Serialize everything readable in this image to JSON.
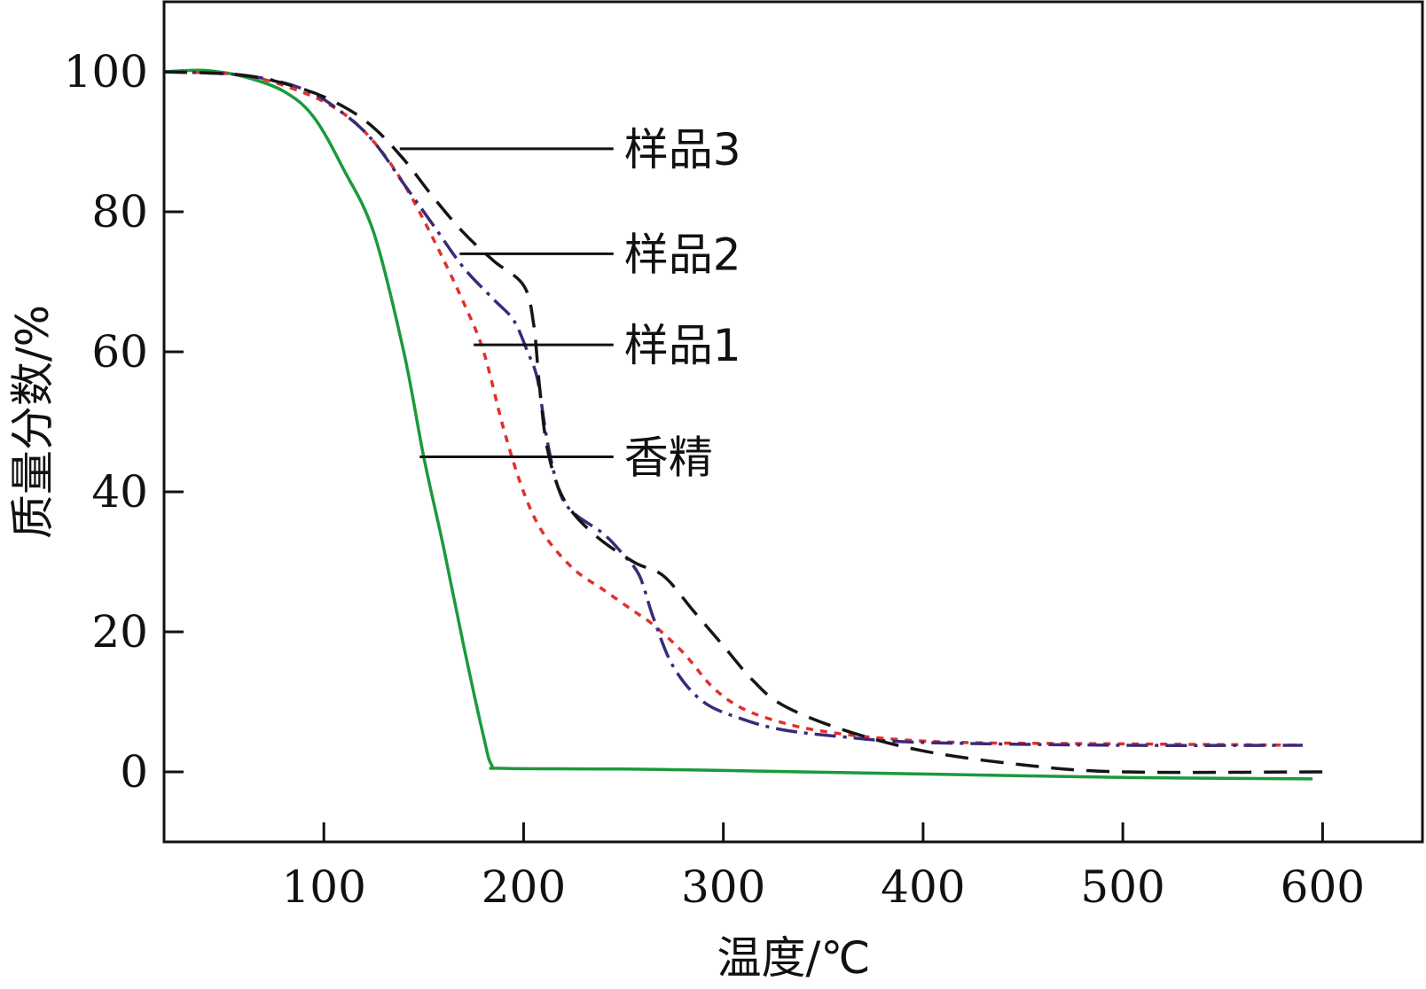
{
  "chart_data": {
    "type": "line",
    "title": "",
    "xlabel": "温度/℃",
    "ylabel": "质量分数/%",
    "xlim": [
      20,
      650
    ],
    "ylim": [
      -10,
      110
    ],
    "xticks": [
      100,
      200,
      300,
      400,
      500,
      600
    ],
    "yticks": [
      0,
      20,
      40,
      60,
      80,
      100
    ],
    "grid": false,
    "series": [
      {
        "name": "香精",
        "color": "#1a9a3c",
        "dash": "solid",
        "points": [
          [
            20,
            100
          ],
          [
            40,
            100.2
          ],
          [
            60,
            99.3
          ],
          [
            80,
            97.2
          ],
          [
            95,
            93.5
          ],
          [
            110,
            86
          ],
          [
            125,
            77
          ],
          [
            140,
            60
          ],
          [
            150,
            45
          ],
          [
            160,
            32
          ],
          [
            170,
            18
          ],
          [
            180,
            5
          ],
          [
            184,
            1
          ],
          [
            190,
            0.5
          ],
          [
            250,
            0.4
          ],
          [
            300,
            0.2
          ],
          [
            400,
            -0.3
          ],
          [
            500,
            -0.8
          ],
          [
            595,
            -1
          ]
        ]
      },
      {
        "name": "样品1",
        "color": "#e0312b",
        "dash": "8,8",
        "points": [
          [
            20,
            100
          ],
          [
            60,
            99.5
          ],
          [
            90,
            97
          ],
          [
            110,
            94
          ],
          [
            125,
            90
          ],
          [
            140,
            84
          ],
          [
            155,
            76
          ],
          [
            170,
            67
          ],
          [
            180,
            60
          ],
          [
            190,
            49
          ],
          [
            200,
            40
          ],
          [
            210,
            34
          ],
          [
            225,
            29
          ],
          [
            240,
            26
          ],
          [
            255,
            23
          ],
          [
            265,
            21
          ],
          [
            280,
            17
          ],
          [
            295,
            12
          ],
          [
            310,
            9
          ],
          [
            330,
            7
          ],
          [
            350,
            5.8
          ],
          [
            380,
            4.8
          ],
          [
            420,
            4.2
          ],
          [
            500,
            4
          ],
          [
            590,
            3.8
          ]
        ]
      },
      {
        "name": "样品2",
        "color": "#3b2a7a",
        "dash": "24,8,4,8",
        "points": [
          [
            20,
            100
          ],
          [
            60,
            99.5
          ],
          [
            90,
            97.5
          ],
          [
            110,
            94
          ],
          [
            125,
            90
          ],
          [
            140,
            84
          ],
          [
            155,
            78
          ],
          [
            170,
            72
          ],
          [
            185,
            67.5
          ],
          [
            195,
            64.5
          ],
          [
            202,
            60
          ],
          [
            207,
            56
          ],
          [
            212,
            47
          ],
          [
            218,
            40
          ],
          [
            225,
            37
          ],
          [
            240,
            34
          ],
          [
            250,
            31
          ],
          [
            258,
            28
          ],
          [
            265,
            22
          ],
          [
            275,
            15
          ],
          [
            290,
            10
          ],
          [
            310,
            7.5
          ],
          [
            330,
            6
          ],
          [
            360,
            5
          ],
          [
            400,
            4.2
          ],
          [
            500,
            3.8
          ],
          [
            590,
            3.8
          ]
        ]
      },
      {
        "name": "样品3",
        "color": "#151515",
        "dash": "26,14",
        "points": [
          [
            20,
            100
          ],
          [
            60,
            99.5
          ],
          [
            90,
            97.5
          ],
          [
            110,
            95
          ],
          [
            125,
            92
          ],
          [
            140,
            87.5
          ],
          [
            155,
            82
          ],
          [
            170,
            77
          ],
          [
            185,
            73
          ],
          [
            200,
            69.5
          ],
          [
            205,
            64
          ],
          [
            208,
            55
          ],
          [
            212,
            46
          ],
          [
            220,
            39
          ],
          [
            235,
            34
          ],
          [
            255,
            30
          ],
          [
            270,
            28
          ],
          [
            285,
            23
          ],
          [
            300,
            18
          ],
          [
            315,
            13
          ],
          [
            330,
            9.5
          ],
          [
            360,
            6
          ],
          [
            400,
            3
          ],
          [
            450,
            1
          ],
          [
            500,
            0
          ],
          [
            600,
            0
          ]
        ]
      }
    ],
    "annotations": [
      {
        "text": "样品3",
        "target_series": "样品3",
        "line_from": [
          138,
          89
        ],
        "line_to": [
          245,
          89
        ]
      },
      {
        "text": "样品2",
        "target_series": "样品2",
        "line_from": [
          168,
          74
        ],
        "line_to": [
          245,
          74
        ]
      },
      {
        "text": "样品1",
        "target_series": "样品1",
        "line_from": [
          175,
          61
        ],
        "line_to": [
          245,
          61
        ]
      },
      {
        "text": "香精",
        "target_series": "香精",
        "line_from": [
          148,
          45
        ],
        "line_to": [
          245,
          45
        ]
      }
    ]
  }
}
